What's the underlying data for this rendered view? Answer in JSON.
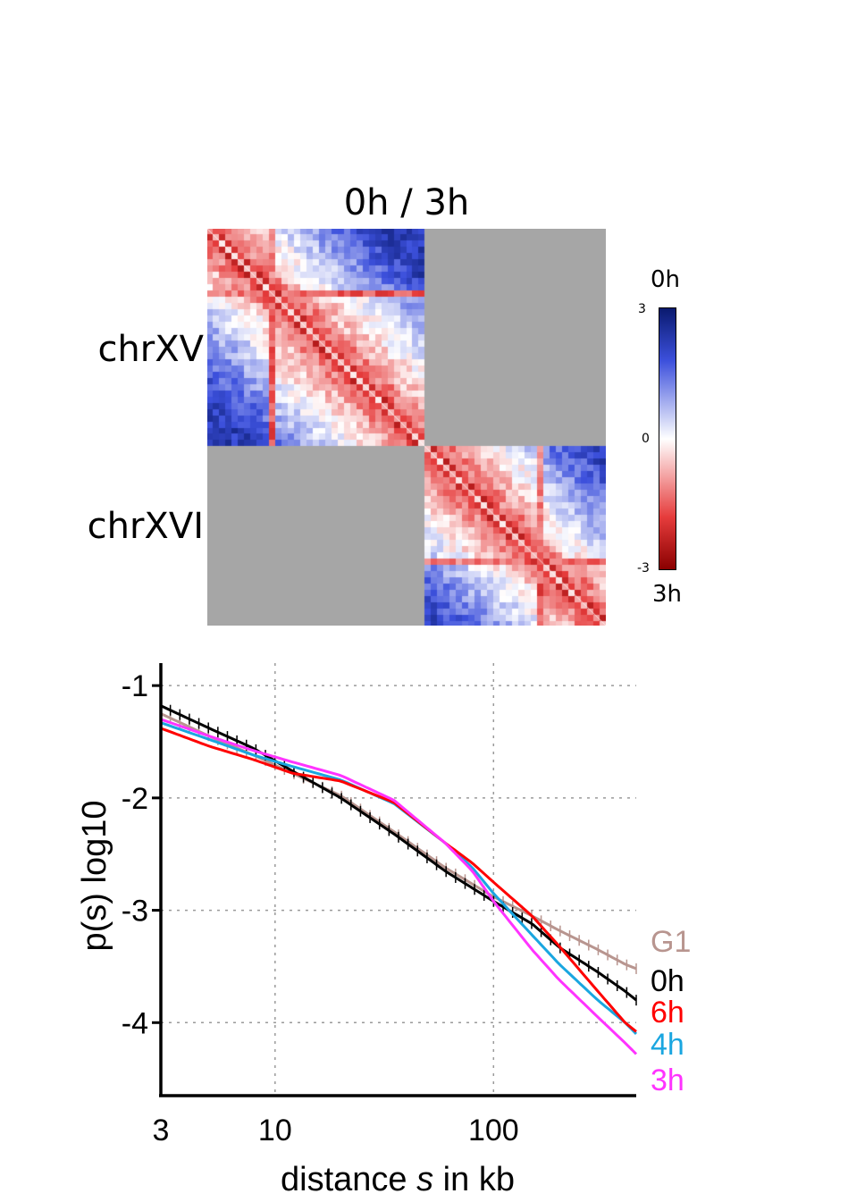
{
  "heatmap": {
    "title": "0h / 3h",
    "row_labels": [
      "chrXV",
      "chrXVI"
    ],
    "colorbar": {
      "top_label": "0h",
      "bottom_label": "3h",
      "ticks": [
        "3",
        "0",
        "-3"
      ],
      "range": [
        -3,
        3
      ],
      "colors": {
        "high": "#0a1a6e",
        "mid": "#ffffff",
        "low": "#8a0000"
      }
    },
    "masked_color": "#a6a6a6"
  },
  "chart_data": {
    "type": "line",
    "xlabel_prefix": "distance ",
    "xlabel_var": "s",
    "xlabel_suffix": " in kb",
    "ylabel": "p(s) log10",
    "x_scale": "log",
    "xlim": [
      3,
      450
    ],
    "ylim": [
      -4.65,
      -0.8
    ],
    "x_ticks": [
      3,
      10,
      100
    ],
    "x_tick_labels": [
      "3",
      "10",
      "100"
    ],
    "y_ticks": [
      -1,
      -2,
      -3,
      -4
    ],
    "y_tick_labels": [
      "-1",
      "-2",
      "-3",
      "-4"
    ],
    "grid": true,
    "legend_placement": "right-end-labels",
    "series": [
      {
        "name": "G1",
        "color": "#b8958f",
        "error_bars": true,
        "x": [
          3,
          5,
          8,
          12,
          20,
          35,
          60,
          100,
          150,
          200,
          300,
          400,
          450
        ],
        "y": [
          -1.25,
          -1.45,
          -1.62,
          -1.78,
          -1.98,
          -2.3,
          -2.62,
          -2.88,
          -3.05,
          -3.18,
          -3.35,
          -3.48,
          -3.52
        ]
      },
      {
        "name": "0h",
        "color": "#000000",
        "error_bars": true,
        "x": [
          3,
          5,
          8,
          12,
          20,
          35,
          60,
          100,
          150,
          200,
          300,
          400,
          450
        ],
        "y": [
          -1.18,
          -1.38,
          -1.56,
          -1.76,
          -2.0,
          -2.32,
          -2.65,
          -2.92,
          -3.12,
          -3.33,
          -3.55,
          -3.72,
          -3.8
        ]
      },
      {
        "name": "6h",
        "color": "#ff0000",
        "error_bars": false,
        "x": [
          3,
          5,
          8,
          12,
          20,
          35,
          60,
          80,
          100,
          150,
          200,
          300,
          400,
          450
        ],
        "y": [
          -1.38,
          -1.54,
          -1.66,
          -1.78,
          -1.85,
          -2.04,
          -2.4,
          -2.58,
          -2.75,
          -3.05,
          -3.32,
          -3.72,
          -4.0,
          -4.08
        ]
      },
      {
        "name": "4h",
        "color": "#1aa6e0",
        "error_bars": false,
        "x": [
          3,
          5,
          8,
          12,
          20,
          35,
          60,
          80,
          100,
          150,
          200,
          300,
          400,
          450
        ],
        "y": [
          -1.33,
          -1.48,
          -1.62,
          -1.72,
          -1.84,
          -2.05,
          -2.4,
          -2.62,
          -2.85,
          -3.22,
          -3.48,
          -3.8,
          -4.0,
          -4.1
        ]
      },
      {
        "name": "3h",
        "color": "#ff33ff",
        "error_bars": false,
        "x": [
          3,
          5,
          8,
          12,
          20,
          35,
          60,
          80,
          100,
          150,
          200,
          300,
          400,
          450
        ],
        "y": [
          -1.3,
          -1.45,
          -1.58,
          -1.68,
          -1.8,
          -2.02,
          -2.4,
          -2.65,
          -2.92,
          -3.35,
          -3.62,
          -3.95,
          -4.18,
          -4.28
        ]
      }
    ]
  }
}
